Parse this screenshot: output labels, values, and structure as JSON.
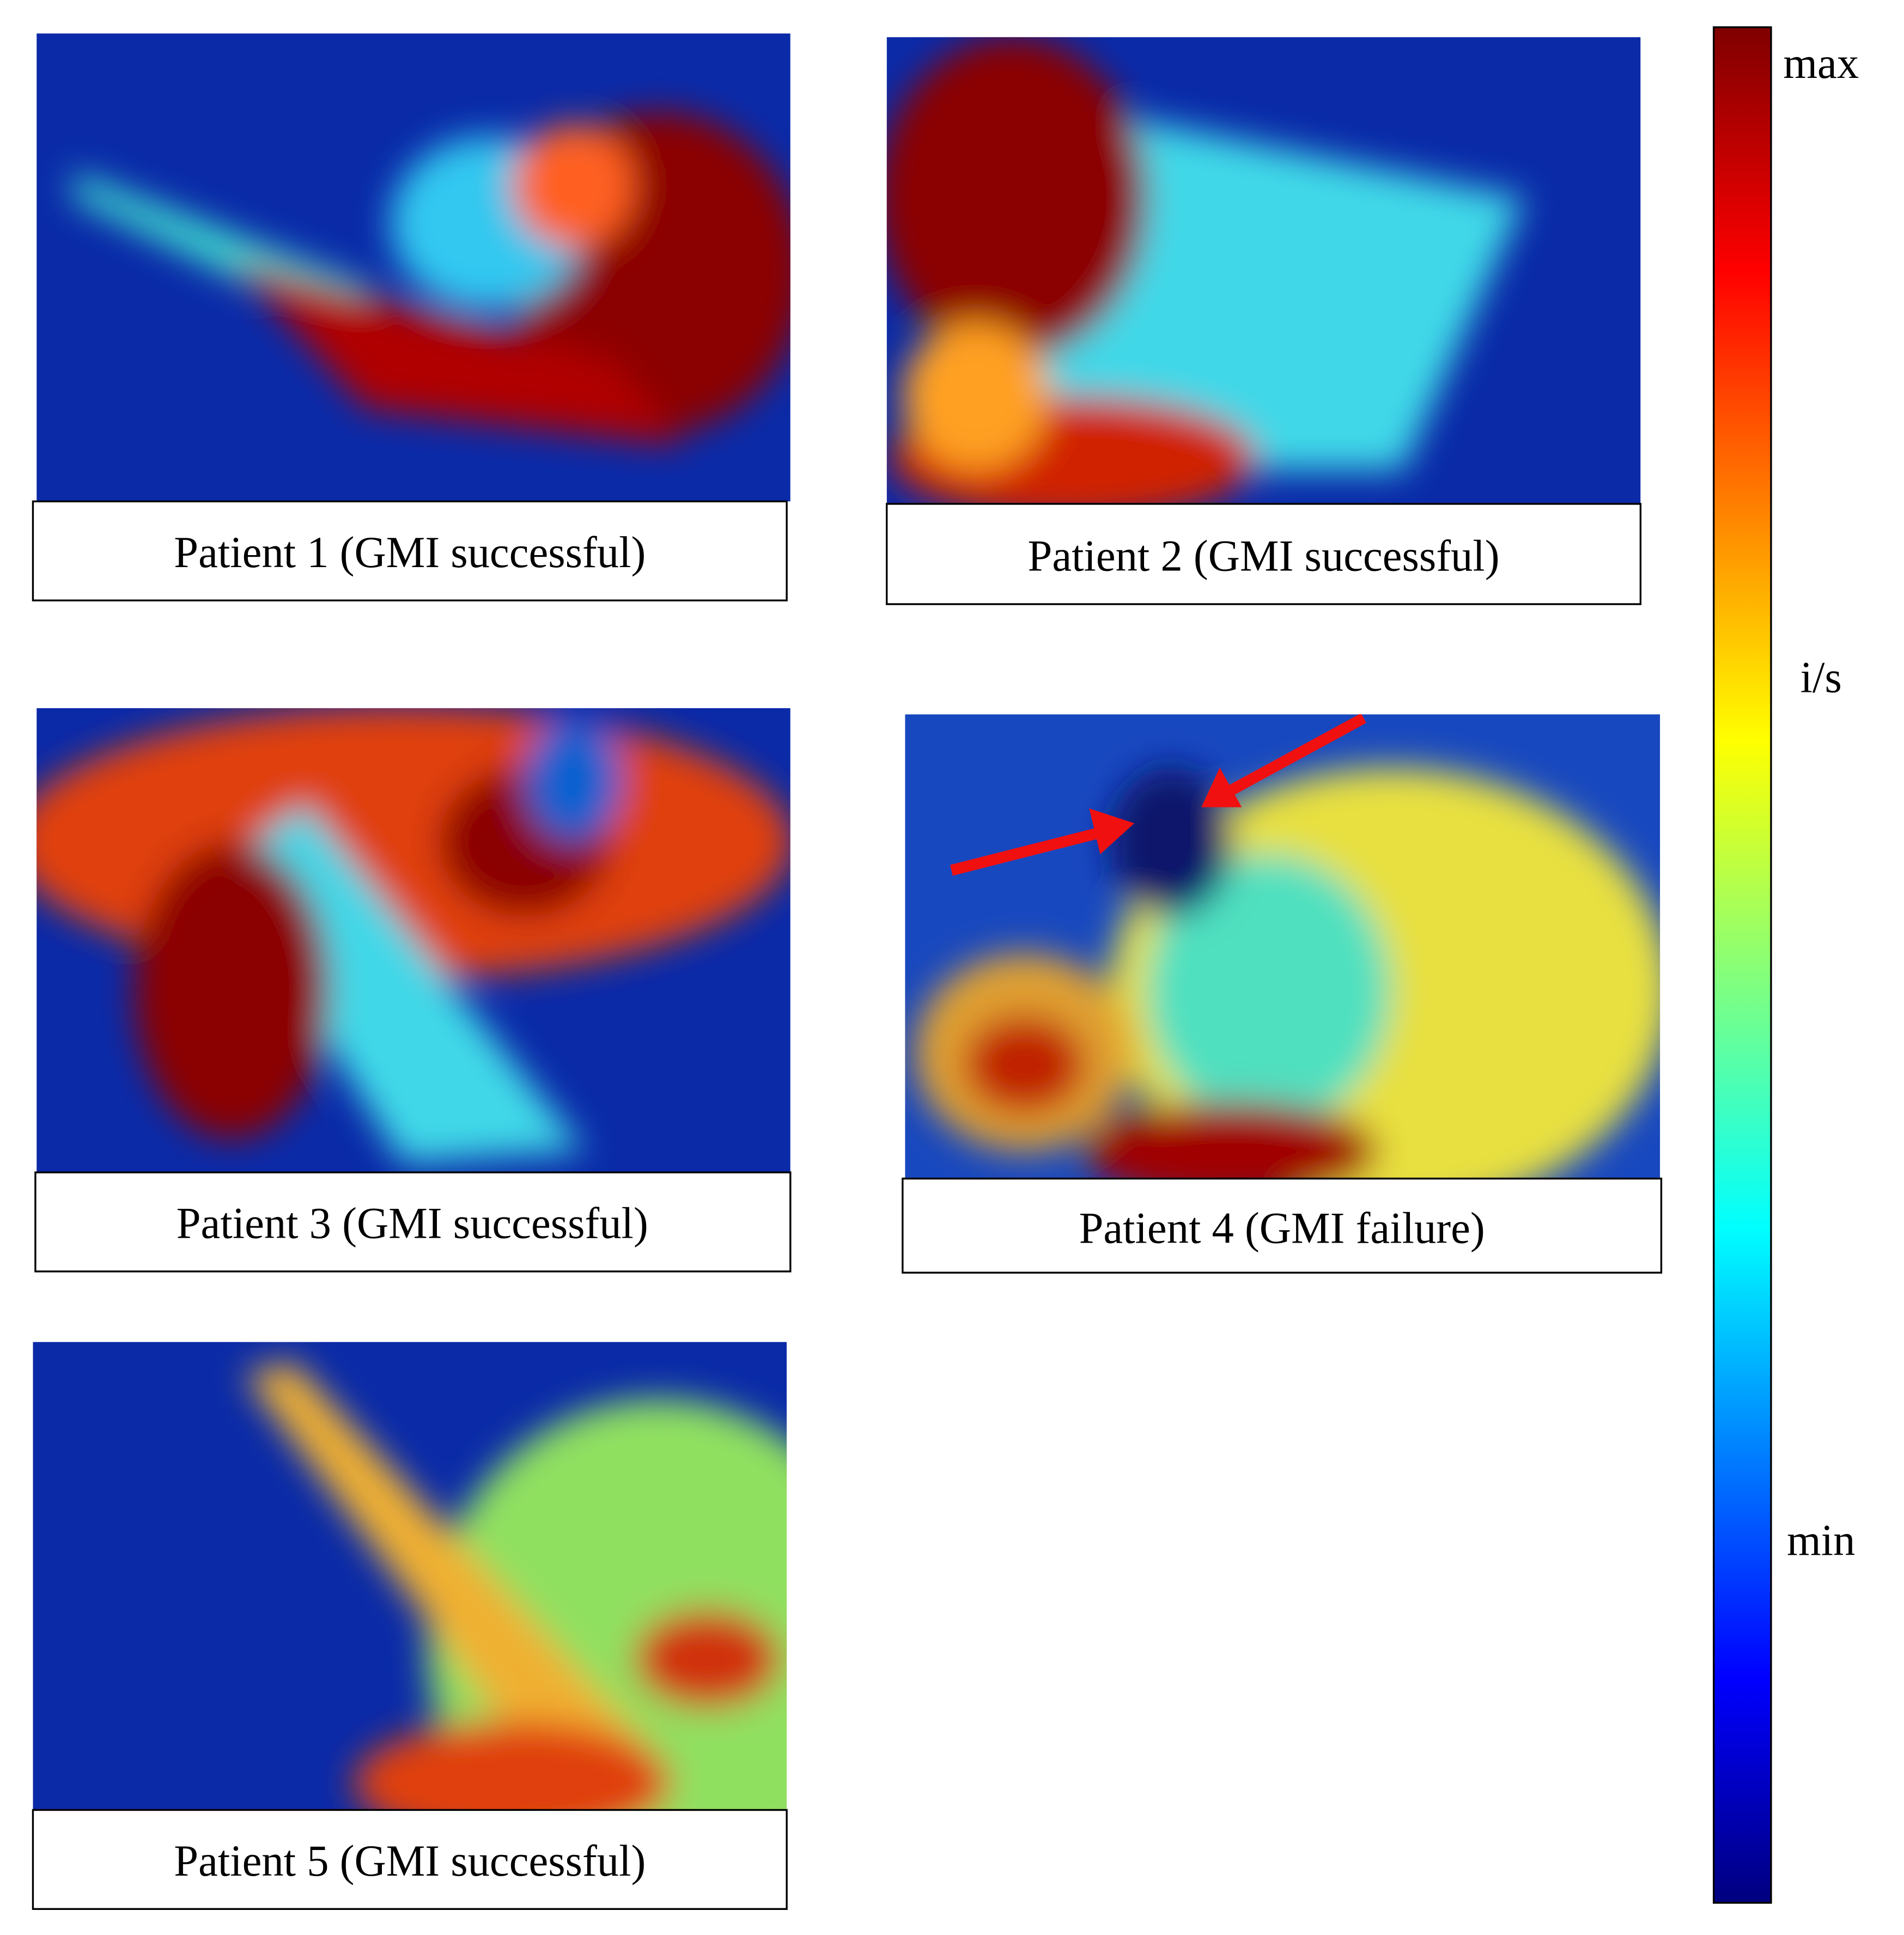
{
  "panels": [
    {
      "caption": "Patient 1 (GMI successful)"
    },
    {
      "caption": "Patient 2 (GMI successful)"
    },
    {
      "caption": "Patient 3 (GMI successful)"
    },
    {
      "caption": "Patient 4 (GMI failure)"
    },
    {
      "caption": "Patient 5 (GMI successful)"
    }
  ],
  "colorbar": {
    "max": "max",
    "mid": "i/s",
    "min": "min"
  }
}
